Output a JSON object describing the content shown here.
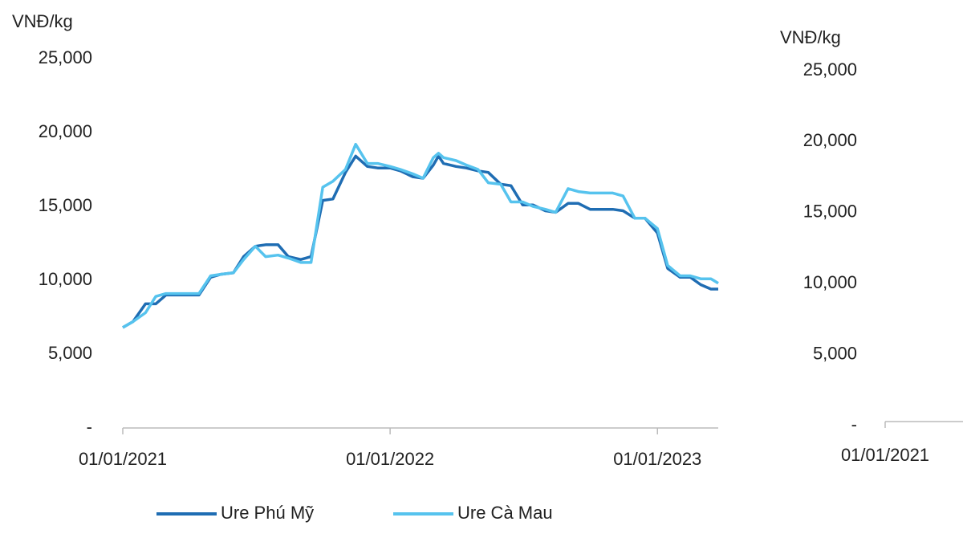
{
  "chart_data": [
    {
      "type": "line",
      "y_label": "VNĐ/kg",
      "x": [
        "01/01/2021",
        "15/01/2021",
        "01/02/2021",
        "15/02/2021",
        "01/03/2021",
        "15/03/2021",
        "01/04/2021",
        "15/04/2021",
        "01/05/2021",
        "15/05/2021",
        "01/06/2021",
        "15/06/2021",
        "01/07/2021",
        "15/07/2021",
        "01/08/2021",
        "15/08/2021",
        "01/09/2021",
        "15/09/2021",
        "01/10/2021",
        "15/10/2021",
        "01/11/2021",
        "15/11/2021",
        "01/12/2021",
        "15/12/2021",
        "01/01/2022",
        "15/01/2022",
        "01/02/2022",
        "15/02/2022",
        "01/03/2022",
        "08/03/2022",
        "15/03/2022",
        "01/04/2022",
        "15/04/2022",
        "01/05/2022",
        "15/05/2022",
        "01/06/2022",
        "15/06/2022",
        "01/07/2022",
        "15/07/2022",
        "01/08/2022",
        "15/08/2022",
        "01/09/2022",
        "15/09/2022",
        "01/10/2022",
        "15/10/2022",
        "01/11/2022",
        "15/11/2022",
        "01/12/2022",
        "15/12/2022",
        "01/01/2023",
        "15/01/2023",
        "01/02/2023",
        "15/02/2023",
        "01/03/2023",
        "15/03/2023",
        "25/03/2023"
      ],
      "series": [
        {
          "name": "Ure Phú Mỹ",
          "color": "#1f6db3",
          "values": [
            6800,
            7200,
            8400,
            8400,
            9000,
            9000,
            9000,
            9000,
            10200,
            10400,
            10500,
            11600,
            12300,
            12400,
            12400,
            11600,
            11400,
            11600,
            15400,
            15500,
            17300,
            18400,
            17700,
            17600,
            17600,
            17400,
            17000,
            16900,
            17800,
            18400,
            17900,
            17700,
            17600,
            17400,
            17300,
            16500,
            16400,
            15100,
            15100,
            14700,
            14600,
            15200,
            15200,
            14800,
            14800,
            14800,
            14700,
            14200,
            14200,
            13200,
            10800,
            10200,
            10200,
            9700,
            9400,
            9400
          ]
        },
        {
          "name": "Ure Cà Mau",
          "color": "#56c3ee",
          "values": [
            6800,
            7200,
            7800,
            8900,
            9100,
            9100,
            9100,
            9100,
            10300,
            10400,
            10500,
            11400,
            12300,
            11600,
            11700,
            11500,
            11200,
            11200,
            16300,
            16700,
            17500,
            19200,
            17900,
            17900,
            17700,
            17500,
            17200,
            16900,
            18300,
            18600,
            18300,
            18100,
            17800,
            17500,
            16600,
            16500,
            15300,
            15300,
            15000,
            14800,
            14600,
            16200,
            16000,
            15900,
            15900,
            15900,
            15700,
            14200,
            14200,
            13500,
            11000,
            10300,
            10300,
            10100,
            10100,
            9800
          ]
        }
      ],
      "xlim": [
        "01/01/2021",
        "25/03/2023"
      ],
      "xticks": [
        "01/01/2021",
        "01/01/2022",
        "01/01/2023"
      ],
      "ylim": [
        0,
        25000
      ],
      "yticks": [
        {
          "value": 0,
          "label": "-"
        },
        {
          "value": 5000,
          "label": "5,000"
        },
        {
          "value": 10000,
          "label": "10,000"
        },
        {
          "value": 15000,
          "label": "15,000"
        },
        {
          "value": 20000,
          "label": "20,000"
        },
        {
          "value": 25000,
          "label": "25,000"
        }
      ]
    },
    {
      "type": "line",
      "y_label": "VNĐ/kg",
      "xticks": [
        "01/01/2021"
      ],
      "ylim": [
        0,
        25000
      ],
      "yticks": [
        {
          "value": 0,
          "label": "-"
        },
        {
          "value": 5000,
          "label": "5,000"
        },
        {
          "value": 10000,
          "label": "10,000"
        },
        {
          "value": 15000,
          "label": "15,000"
        },
        {
          "value": 20000,
          "label": "20,000"
        },
        {
          "value": 25000,
          "label": "25,000"
        }
      ]
    }
  ]
}
